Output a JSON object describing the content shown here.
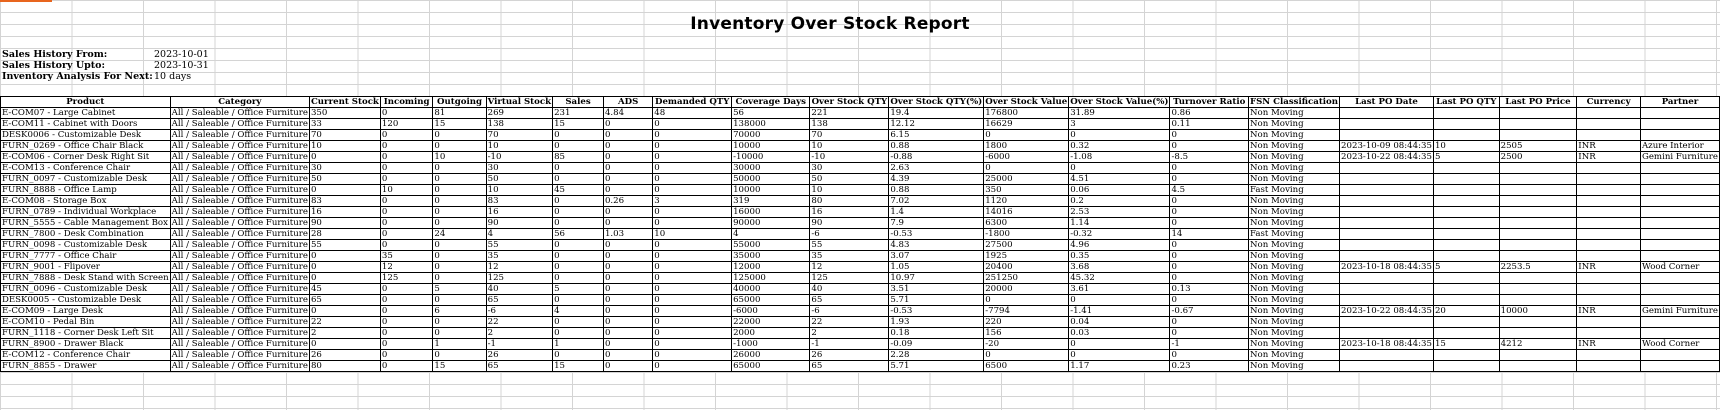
{
  "report": {
    "title": "Inventory Over Stock Report",
    "meta": [
      {
        "label": "Sales History From:",
        "value": "2023-10-01"
      },
      {
        "label": "Sales History Upto:",
        "value": "2023-10-31"
      },
      {
        "label": "Inventory Analysis For Next:",
        "value": "10 days"
      }
    ]
  },
  "table": {
    "columns": [
      "Product",
      "Category",
      "Current Stock",
      "Incoming",
      "Outgoing",
      "Virtual Stock",
      "Sales",
      "ADS",
      "Demanded QTY",
      "Coverage Days",
      "Over Stock QTY",
      "Over Stock QTY(%)",
      "Over Stock Value",
      "Over Stock Value(%)",
      "Turnover Ratio",
      "FSN Classification",
      "Last PO Date",
      "Last PO QTY",
      "Last PO Price",
      "Currency",
      "Partner"
    ],
    "rows": [
      [
        "E-COM07 - Large Cabinet",
        "All / Saleable / Office Furniture",
        "350",
        "0",
        "81",
        "269",
        "231",
        "4.84",
        "48",
        "56",
        "221",
        "19.4",
        "176800",
        "31.89",
        "0.86",
        "Non Moving",
        "",
        "",
        "",
        "",
        ""
      ],
      [
        "E-COM11 - Cabinet with Doors",
        "All / Saleable / Office Furniture",
        "33",
        "120",
        "15",
        "138",
        "15",
        "0",
        "0",
        "138000",
        "138",
        "12.12",
        "16629",
        "3",
        "0.11",
        "Non Moving",
        "",
        "",
        "",
        "",
        ""
      ],
      [
        "DESK0006 - Customizable Desk",
        "All / Saleable / Office Furniture",
        "70",
        "0",
        "0",
        "70",
        "0",
        "0",
        "0",
        "70000",
        "70",
        "6.15",
        "0",
        "0",
        "0",
        "Non Moving",
        "",
        "",
        "",
        "",
        ""
      ],
      [
        "FURN_0269 - Office Chair Black",
        "All / Saleable / Office Furniture",
        "10",
        "0",
        "0",
        "10",
        "0",
        "0",
        "0",
        "10000",
        "10",
        "0.88",
        "1800",
        "0.32",
        "0",
        "Non Moving",
        "2023-10-09 08:44:35",
        "10",
        "2505",
        "INR",
        "Azure Interior"
      ],
      [
        "E-COM06 - Corner Desk Right Sit",
        "All / Saleable / Office Furniture",
        "0",
        "0",
        "10",
        "-10",
        "85",
        "0",
        "0",
        "-10000",
        "-10",
        "-0.88",
        "-6000",
        "-1.08",
        "-8.5",
        "Non Moving",
        "2023-10-22 08:44:35",
        "5",
        "2500",
        "INR",
        "Gemini Furniture"
      ],
      [
        "E-COM13 - Conference Chair",
        "All / Saleable / Office Furniture",
        "30",
        "0",
        "0",
        "30",
        "0",
        "0",
        "0",
        "30000",
        "30",
        "2.63",
        "0",
        "0",
        "0",
        "Non Moving",
        "",
        "",
        "",
        "",
        ""
      ],
      [
        "FURN_0097 - Customizable Desk",
        "All / Saleable / Office Furniture",
        "50",
        "0",
        "0",
        "50",
        "0",
        "0",
        "0",
        "50000",
        "50",
        "4.39",
        "25000",
        "4.51",
        "0",
        "Non Moving",
        "",
        "",
        "",
        "",
        ""
      ],
      [
        "FURN_8888 - Office Lamp",
        "All / Saleable / Office Furniture",
        "0",
        "10",
        "0",
        "10",
        "45",
        "0",
        "0",
        "10000",
        "10",
        "0.88",
        "350",
        "0.06",
        "4.5",
        "Fast Moving",
        "",
        "",
        "",
        "",
        ""
      ],
      [
        "E-COM08 - Storage Box",
        "All / Saleable / Office Furniture",
        "83",
        "0",
        "0",
        "83",
        "0",
        "0.26",
        "3",
        "319",
        "80",
        "7.02",
        "1120",
        "0.2",
        "0",
        "Non Moving",
        "",
        "",
        "",
        "",
        ""
      ],
      [
        "FURN_0789 - Individual Workplace",
        "All / Saleable / Office Furniture",
        "16",
        "0",
        "0",
        "16",
        "0",
        "0",
        "0",
        "16000",
        "16",
        "1.4",
        "14016",
        "2.53",
        "0",
        "Non Moving",
        "",
        "",
        "",
        "",
        ""
      ],
      [
        "FURN_5555 - Cable Management Box",
        "All / Saleable / Office Furniture",
        "90",
        "0",
        "0",
        "90",
        "0",
        "0",
        "0",
        "90000",
        "90",
        "7.9",
        "6300",
        "1.14",
        "0",
        "Non Moving",
        "",
        "",
        "",
        "",
        ""
      ],
      [
        "FURN_7800 - Desk Combination",
        "All / Saleable / Office Furniture",
        "28",
        "0",
        "24",
        "4",
        "56",
        "1.03",
        "10",
        "4",
        "-6",
        "-0.53",
        "-1800",
        "-0.32",
        "14",
        "Fast Moving",
        "",
        "",
        "",
        "",
        ""
      ],
      [
        "FURN_0098 - Customizable Desk",
        "All / Saleable / Office Furniture",
        "55",
        "0",
        "0",
        "55",
        "0",
        "0",
        "0",
        "55000",
        "55",
        "4.83",
        "27500",
        "4.96",
        "0",
        "Non Moving",
        "",
        "",
        "",
        "",
        ""
      ],
      [
        "FURN_7777 - Office Chair",
        "All / Saleable / Office Furniture",
        "0",
        "35",
        "0",
        "35",
        "0",
        "0",
        "0",
        "35000",
        "35",
        "3.07",
        "1925",
        "0.35",
        "0",
        "Non Moving",
        "",
        "",
        "",
        "",
        ""
      ],
      [
        "FURN_9001 - Flipover",
        "All / Saleable / Office Furniture",
        "0",
        "12",
        "0",
        "12",
        "0",
        "0",
        "0",
        "12000",
        "12",
        "1.05",
        "20400",
        "3.68",
        "0",
        "Non Moving",
        "2023-10-18 08:44:35",
        "5",
        "2253.5",
        "INR",
        "Wood Corner"
      ],
      [
        "FURN_7888 - Desk Stand with Screen",
        "All / Saleable / Office Furniture",
        "0",
        "125",
        "0",
        "125",
        "0",
        "0",
        "0",
        "125000",
        "125",
        "10.97",
        "251250",
        "45.32",
        "0",
        "Non Moving",
        "",
        "",
        "",
        "",
        ""
      ],
      [
        "FURN_0096 - Customizable Desk",
        "All / Saleable / Office Furniture",
        "45",
        "0",
        "5",
        "40",
        "5",
        "0",
        "0",
        "40000",
        "40",
        "3.51",
        "20000",
        "3.61",
        "0.13",
        "Non Moving",
        "",
        "",
        "",
        "",
        ""
      ],
      [
        "DESK0005 - Customizable Desk",
        "All / Saleable / Office Furniture",
        "65",
        "0",
        "0",
        "65",
        "0",
        "0",
        "0",
        "65000",
        "65",
        "5.71",
        "0",
        "0",
        "0",
        "Non Moving",
        "",
        "",
        "",
        "",
        ""
      ],
      [
        "E-COM09 - Large Desk",
        "All / Saleable / Office Furniture",
        "0",
        "0",
        "6",
        "-6",
        "4",
        "0",
        "0",
        "-6000",
        "-6",
        "-0.53",
        "-7794",
        "-1.41",
        "-0.67",
        "Non Moving",
        "2023-10-22 08:44:35",
        "20",
        "10000",
        "INR",
        "Gemini Furniture"
      ],
      [
        "E-COM10 - Pedal Bin",
        "All / Saleable / Office Furniture",
        "22",
        "0",
        "0",
        "22",
        "0",
        "0",
        "0",
        "22000",
        "22",
        "1.93",
        "220",
        "0.04",
        "0",
        "Non Moving",
        "",
        "",
        "",
        "",
        ""
      ],
      [
        "FURN_1118 - Corner Desk Left Sit",
        "All / Saleable / Office Furniture",
        "2",
        "0",
        "0",
        "2",
        "0",
        "0",
        "0",
        "2000",
        "2",
        "0.18",
        "156",
        "0.03",
        "0",
        "Non Moving",
        "",
        "",
        "",
        "",
        ""
      ],
      [
        "FURN_8900 - Drawer Black",
        "All / Saleable / Office Furniture",
        "0",
        "0",
        "1",
        "-1",
        "1",
        "0",
        "0",
        "-1000",
        "-1",
        "-0.09",
        "-20",
        "0",
        "-1",
        "Non Moving",
        "2023-10-18 08:44:35",
        "15",
        "4212",
        "INR",
        "Wood Corner"
      ],
      [
        "E-COM12 - Conference Chair",
        "All / Saleable / Office Furniture",
        "26",
        "0",
        "0",
        "26",
        "0",
        "0",
        "0",
        "26000",
        "26",
        "2.28",
        "0",
        "0",
        "0",
        "Non Moving",
        "",
        "",
        "",
        "",
        ""
      ],
      [
        "FURN_8855 - Drawer",
        "All / Saleable / Office Furniture",
        "80",
        "0",
        "15",
        "65",
        "15",
        "0",
        "0",
        "65000",
        "65",
        "5.71",
        "6500",
        "1.17",
        "0.23",
        "Non Moving",
        "",
        "",
        "",
        "",
        ""
      ]
    ]
  }
}
